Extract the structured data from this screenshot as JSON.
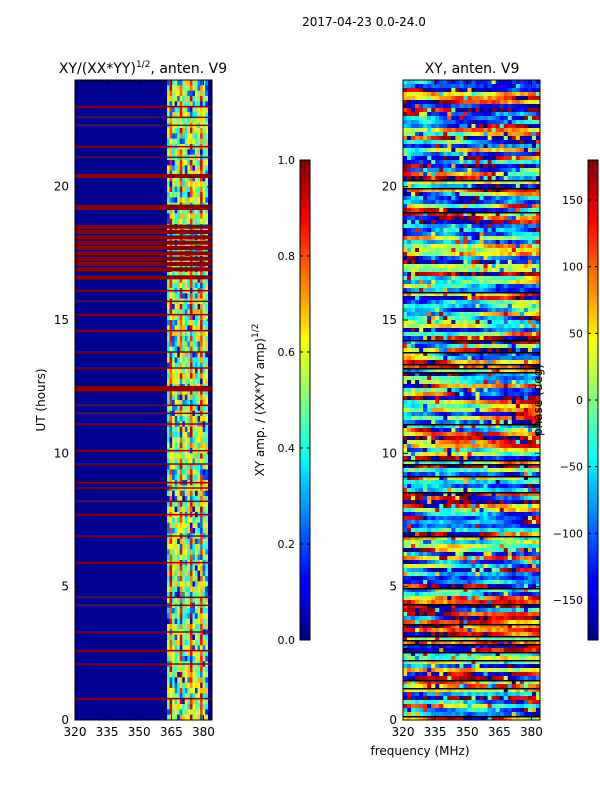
{
  "figure_title": "2017-04-23 0.0-24.0",
  "chart_data": [
    {
      "type": "heatmap",
      "title": "XY/(XX*YY)^{1/2}, anten. V9",
      "title_main": "XY/(XX*YY)",
      "title_sup": "1/2",
      "title_rest": ", anten. V9",
      "xlabel": "",
      "ylabel": "UT (hours)",
      "xlim": [
        320,
        384
      ],
      "ylim": [
        0,
        24
      ],
      "xticks": [
        320,
        335,
        350,
        365,
        380
      ],
      "yticks": [
        0,
        5,
        10,
        15,
        20
      ],
      "colorbar": {
        "label": "XY amp. / (XX*YY amp)^{1/2}",
        "label_main": "XY amp. / (XX*YY amp)",
        "label_sup": "1/2",
        "range": [
          0.0,
          1.0
        ],
        "ticks": [
          "0.0",
          "0.2",
          "0.4",
          "0.6",
          "0.8",
          "1.0"
        ],
        "colormap": "jet"
      },
      "flagged_hours": [
        0.8,
        2.1,
        2.6,
        3.3,
        4.3,
        4.6,
        5.9,
        6.9,
        7.7,
        8.2,
        8.7,
        8.9,
        9.6,
        10.1,
        11.1,
        11.5,
        11.8,
        12.4,
        12.5,
        13.2,
        13.8,
        14.6,
        15.2,
        15.7,
        16.1,
        16.6,
        16.9,
        17.1,
        17.3,
        17.5,
        17.7,
        17.9,
        18.1,
        18.3,
        18.5,
        19.2,
        19.3,
        20.4,
        21.1,
        21.5,
        22.3,
        22.6,
        23.0
      ],
      "active_band_mhz": [
        363,
        382
      ]
    },
    {
      "type": "heatmap",
      "title": "XY, anten. V9",
      "xlabel": "frequency (MHz)",
      "ylabel": "",
      "xlim": [
        320,
        384
      ],
      "ylim": [
        0,
        24
      ],
      "xticks": [
        320,
        335,
        350,
        365,
        380
      ],
      "yticks": [
        0,
        5,
        10,
        15,
        20
      ],
      "colorbar": {
        "label": "phase (deg)",
        "range": [
          -180,
          180
        ],
        "ticks": [
          "−150",
          "−100",
          "−50",
          "0",
          "50",
          "100",
          "150"
        ],
        "colormap": "jet"
      }
    }
  ]
}
